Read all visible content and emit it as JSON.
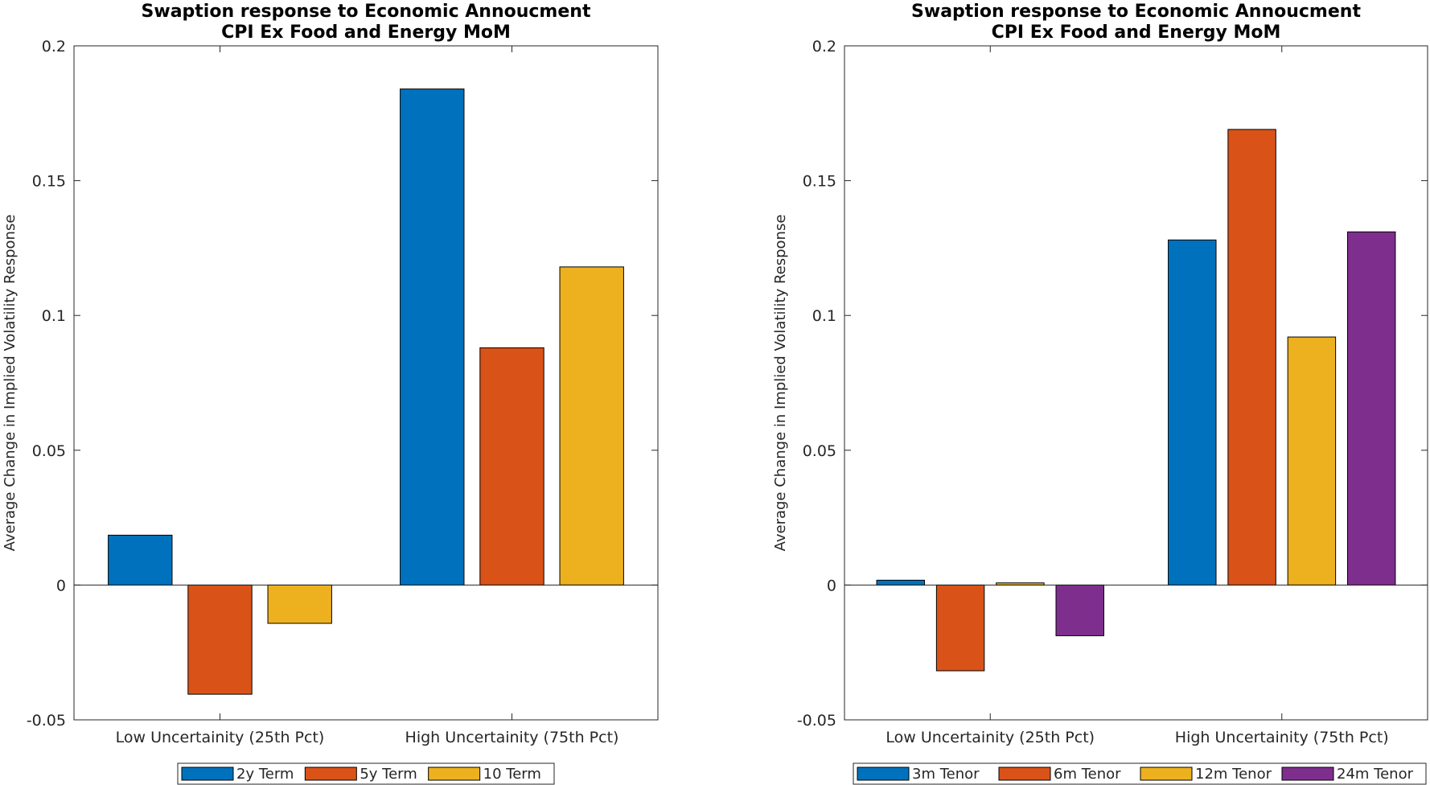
{
  "chart_data": [
    {
      "type": "bar",
      "title": "Swaption response to Economic Annoucment",
      "subtitle": "CPI Ex Food and Energy MoM",
      "xlabel": "",
      "ylabel": "Average Change in Implied Volatility Response",
      "ylim": [
        -0.05,
        0.2
      ],
      "yticks": [
        -0.05,
        0,
        0.05,
        0.1,
        0.15,
        0.2
      ],
      "ytick_labels": [
        "-0.05",
        "0",
        "0.05",
        "0.1",
        "0.15",
        "0.2"
      ],
      "categories": [
        "Low Uncertainity (25th Pct)",
        "High Uncertainity (75th Pct)"
      ],
      "grid": false,
      "legend_position": "bottom",
      "series": [
        {
          "name": "2y Term",
          "color": "#0072BD",
          "values": [
            0.0185,
            0.184
          ]
        },
        {
          "name": "5y Term",
          "color": "#D95319",
          "values": [
            -0.0405,
            0.088
          ]
        },
        {
          "name": "10 Term",
          "color": "#EDB120",
          "values": [
            -0.0142,
            0.118
          ]
        }
      ]
    },
    {
      "type": "bar",
      "title": "Swaption response to Economic Annoucment",
      "subtitle": "CPI Ex Food and Energy MoM",
      "xlabel": "",
      "ylabel": "Average Change in Implied Volatility Response",
      "ylim": [
        -0.05,
        0.2
      ],
      "yticks": [
        -0.05,
        0,
        0.05,
        0.1,
        0.15,
        0.2
      ],
      "ytick_labels": [
        "-0.05",
        "0",
        "0.05",
        "0.1",
        "0.15",
        "0.2"
      ],
      "categories": [
        "Low Uncertainity (25th Pct)",
        "High Uncertainity (75th Pct)"
      ],
      "grid": false,
      "legend_position": "bottom",
      "series": [
        {
          "name": "3m Tenor",
          "color": "#0072BD",
          "values": [
            0.0018,
            0.128
          ]
        },
        {
          "name": "6m Tenor",
          "color": "#D95319",
          "values": [
            -0.0318,
            0.169
          ]
        },
        {
          "name": "12m Tenor",
          "color": "#EDB120",
          "values": [
            0.0008,
            0.092
          ]
        },
        {
          "name": "24m Tenor",
          "color": "#7E2F8E",
          "values": [
            -0.0188,
            0.131
          ]
        }
      ]
    }
  ]
}
